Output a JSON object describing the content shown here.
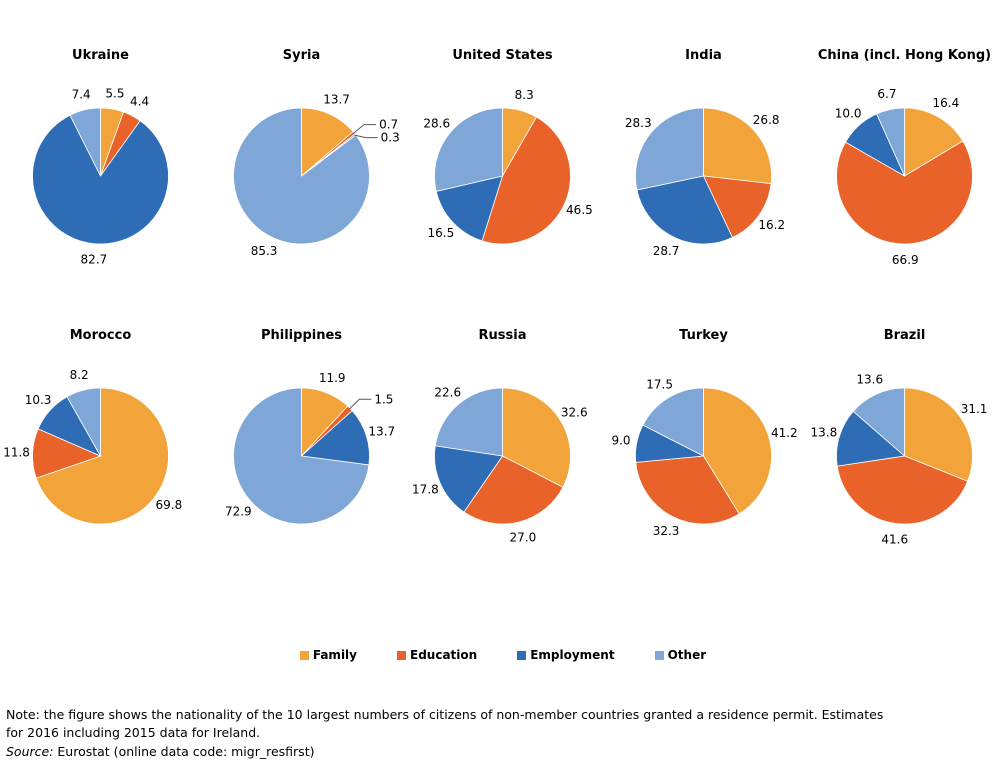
{
  "chart_data": {
    "type": "pie",
    "layout": "grid-5x2",
    "series_names": [
      "Family",
      "Education",
      "Employment",
      "Other"
    ],
    "colors": [
      "#F2A33A",
      "#E8622A",
      "#2E6DB5",
      "#7EA7D8"
    ],
    "pies": [
      {
        "title": "Ukraine",
        "values": [
          5.5,
          4.4,
          82.7,
          7.4
        ]
      },
      {
        "title": "Syria",
        "values": [
          13.7,
          0.7,
          0.3,
          85.3
        ]
      },
      {
        "title": "United States",
        "values": [
          8.3,
          46.5,
          16.5,
          28.6
        ]
      },
      {
        "title": "India",
        "values": [
          26.8,
          16.2,
          28.7,
          28.3
        ]
      },
      {
        "title": "China (incl. Hong Kong)",
        "values": [
          16.4,
          66.9,
          10.0,
          6.7
        ]
      },
      {
        "title": "Morocco",
        "values": [
          69.8,
          11.8,
          10.3,
          8.2
        ]
      },
      {
        "title": "Philippines",
        "values": [
          11.9,
          1.5,
          13.7,
          72.9
        ]
      },
      {
        "title": "Russia",
        "values": [
          32.6,
          27.0,
          17.8,
          22.6
        ]
      },
      {
        "title": "Turkey",
        "values": [
          41.2,
          32.3,
          9.0,
          17.5
        ]
      },
      {
        "title": "Brazil",
        "values": [
          31.1,
          41.6,
          13.8,
          13.6
        ]
      }
    ],
    "legend_position": "bottom-center",
    "value_format": "one-decimal-percent"
  },
  "figure": {
    "note": "Note: the figure shows the nationality of the 10 largest numbers of citizens of non-member countries granted a residence permit. Estimates for 2016 including 2015 data for Ireland.",
    "source_label": "Source:",
    "source_rest": "Eurostat (online data code: migr_resfirst)"
  }
}
